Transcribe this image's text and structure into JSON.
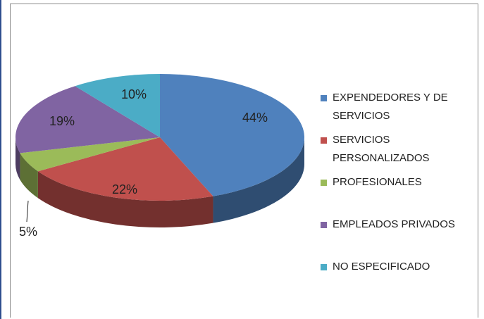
{
  "chart_data": {
    "type": "pie",
    "categories": [
      "EXPENDEDORES Y DE SERVICIOS",
      "SERVICIOS PERSONALIZADOS",
      "PROFESIONALES",
      "EMPLEADOS PRIVADOS",
      "NO ESPECIFICADO"
    ],
    "values": [
      44,
      22,
      5,
      19,
      10
    ],
    "value_labels": [
      "44%",
      "22%",
      "5%",
      "19%",
      "10%"
    ],
    "colors": [
      "#4f81bd",
      "#c0504d",
      "#9bbb59",
      "#8064a2",
      "#4bacc6"
    ],
    "legend": "right"
  }
}
